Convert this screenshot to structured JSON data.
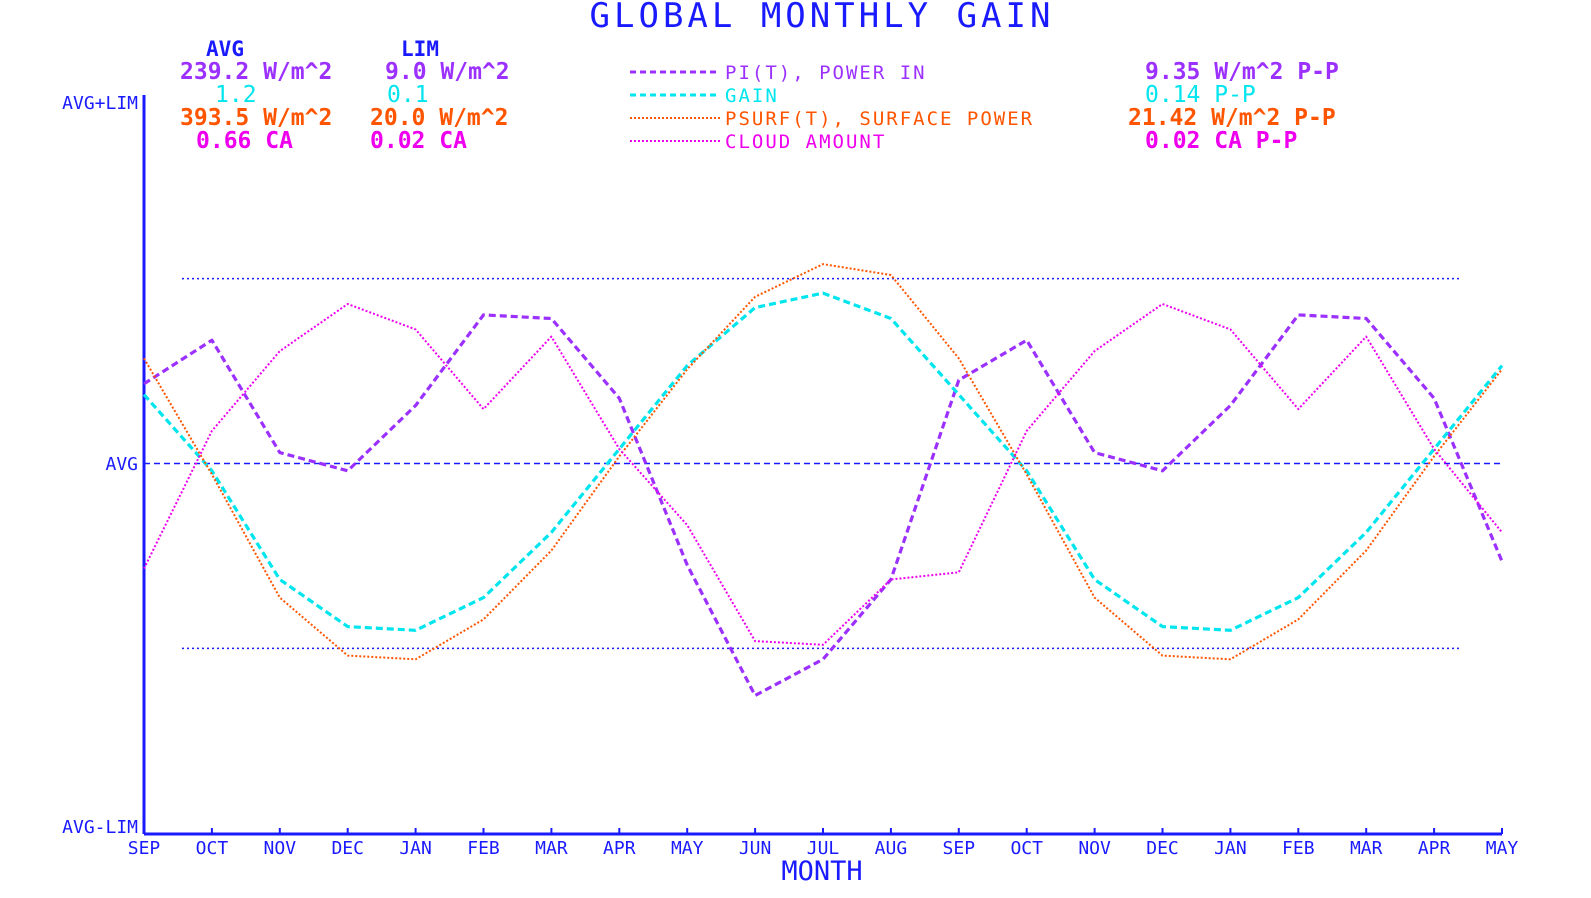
{
  "chart_data": {
    "type": "line",
    "title": "GLOBAL MONTHLY GAIN",
    "xlabel": "MONTH",
    "x": [
      "SEP",
      "OCT",
      "NOV",
      "DEC",
      "JAN",
      "FEB",
      "MAR",
      "APR",
      "MAY",
      "JUN",
      "JUL",
      "AUG",
      "SEP",
      "OCT",
      "NOV",
      "DEC",
      "JAN",
      "FEB",
      "MAR",
      "APR",
      "MAY"
    ],
    "y_ticks": {
      "top": "AVG+LIM",
      "middle": "AVG",
      "bottom": "AVG-LIM"
    },
    "ylim": [
      -1,
      1
    ],
    "reference_lines": {
      "avg": 0,
      "upper_dotted": 0.51,
      "lower_dotted": -0.51
    },
    "legend_headers": {
      "avg": "AVG",
      "lim": "LIM"
    },
    "series": [
      {
        "name": "PI(T), POWER IN",
        "color": "#9b30ff",
        "style": "dashed",
        "avg": "239.2 W/m^2",
        "lim": "9.0 W/m^2",
        "pp": "9.35 W/m^2 P-P",
        "values": [
          0.22,
          0.34,
          0.03,
          -0.02,
          0.16,
          0.41,
          0.4,
          0.18,
          -0.28,
          -0.64,
          -0.54,
          -0.32,
          0.23,
          0.34,
          0.03,
          -0.02,
          0.16,
          0.41,
          0.4,
          0.18,
          -0.27
        ]
      },
      {
        "name": "GAIN",
        "color": "#00e5ee",
        "style": "dashed",
        "avg": "1.2",
        "lim": "0.1",
        "pp": "0.14  P-P",
        "values": [
          0.19,
          -0.02,
          -0.32,
          -0.45,
          -0.46,
          -0.37,
          -0.19,
          0.04,
          0.27,
          0.43,
          0.47,
          0.4,
          0.19,
          -0.02,
          -0.32,
          -0.45,
          -0.46,
          -0.37,
          -0.19,
          0.04,
          0.27
        ]
      },
      {
        "name": "PSURF(T), SURFACE POWER",
        "color": "#ff5500",
        "style": "dotted",
        "avg": "393.5 W/m^2",
        "lim": "20.0 W/m^2",
        "pp": "21.42 W/m^2 P-P",
        "values": [
          0.29,
          -0.03,
          -0.37,
          -0.53,
          -0.54,
          -0.43,
          -0.24,
          0.02,
          0.26,
          0.46,
          0.55,
          0.52,
          0.29,
          -0.03,
          -0.37,
          -0.53,
          -0.54,
          -0.43,
          -0.24,
          0.02,
          0.26
        ]
      },
      {
        "name": "CLOUD AMOUNT",
        "color": "#ee00ee",
        "style": "dotted",
        "avg": "0.66 CA",
        "lim": "0.02 CA",
        "pp": "0.02 CA P-P",
        "values": [
          -0.29,
          0.09,
          0.31,
          0.44,
          0.37,
          0.15,
          0.35,
          0.04,
          -0.17,
          -0.49,
          -0.5,
          -0.32,
          -0.3,
          0.09,
          0.31,
          0.44,
          0.37,
          0.15,
          0.35,
          0.04,
          -0.19
        ]
      }
    ]
  }
}
